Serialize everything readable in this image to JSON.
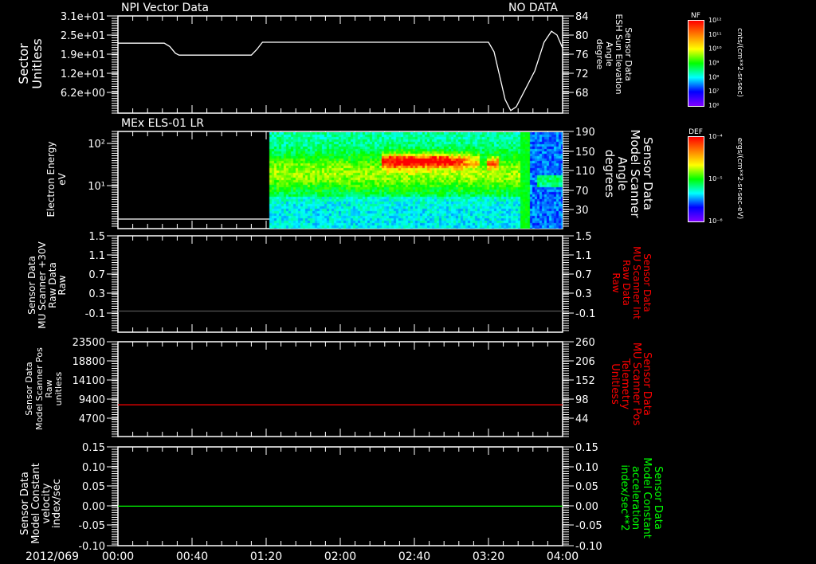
{
  "header": {
    "title": "NPI Vector Data",
    "status": "NO DATA"
  },
  "x_axis": {
    "date_label": "2012/069",
    "tick_labels": [
      "00:00",
      "00:40",
      "01:20",
      "02:00",
      "02:40",
      "03:20",
      "04:00"
    ],
    "range_minutes": [
      0,
      240
    ]
  },
  "colors": {
    "white": "#ffffff",
    "red": "#ff0000",
    "green": "#00ff00",
    "gray": "#555555"
  },
  "colorbars": [
    {
      "title": "NF",
      "ticks": [
        "10¹²",
        "10¹¹",
        "10¹⁰",
        "10⁹",
        "10⁸",
        "10⁷",
        "10⁶"
      ],
      "units": "cnts/(cm**2-sr-sec)"
    },
    {
      "title": "DEF",
      "ticks": [
        "10⁻⁴",
        "10⁻⁵",
        "10⁻⁶"
      ],
      "units": "ergs/(cm**2-sr-sec-eV)"
    }
  ],
  "chart_data": [
    {
      "type": "line",
      "title": "NPI Vector Data",
      "ylabel_left": [
        "Sector",
        "Unitless"
      ],
      "left_ticks": [
        "3.1e+01",
        "2.5e+01",
        "1.9e+01",
        "1.2e+01",
        "6.2e+00"
      ],
      "ylabel_right": [
        "Sensor Data",
        "ESH Sun Elevation",
        "Angle",
        "degree"
      ],
      "right_ticks": [
        "84",
        "80",
        "76",
        "72",
        "68"
      ],
      "ylim_right": [
        63.7,
        84
      ],
      "series": [
        {
          "name": "ESH Sun Elevation Angle",
          "color": "#ffffff",
          "x": [
            0,
            25,
            28,
            31,
            33,
            72,
            75,
            78,
            200,
            203,
            206,
            209,
            212,
            215,
            225,
            230,
            234,
            237,
            240
          ],
          "y": [
            78.3,
            78.3,
            77.6,
            76.2,
            75.8,
            75.8,
            77.0,
            78.5,
            78.5,
            76.5,
            71.5,
            66.5,
            64.2,
            65.0,
            72.5,
            78.5,
            80.8,
            80.0,
            77.3
          ]
        }
      ]
    },
    {
      "type": "heatmap",
      "title": "MEx ELS-01 LR",
      "ylabel_left": [
        "Electron Energy",
        "eV"
      ],
      "left_ticks": [
        "10²",
        "10¹"
      ],
      "ylim_log10": [
        0,
        2.3
      ],
      "ylabel_right": [
        "Sensor Data",
        "Model Scanner",
        "Angle",
        "degrees"
      ],
      "right_ticks": [
        "190",
        "150",
        "110",
        "70",
        "30"
      ],
      "data_start_minute": 81,
      "intense_band": {
        "start_minute": 141,
        "end_minute": 194,
        "log10_energy_center": 1.65
      },
      "quiet_after_minute": 222,
      "baseline_series": {
        "color": "#ffffff",
        "log10_energy": 0.22
      }
    },
    {
      "type": "line",
      "ylabel_left": [
        "Sensor Data",
        "MU Scanner +30V",
        "Raw Data",
        "Raw"
      ],
      "left_ticks": [
        "1.5",
        "1.1",
        "0.7",
        "0.3",
        "-0.1"
      ],
      "ylabel_right": [
        "Sensor Data",
        "MU Scanner Int",
        "Raw Data",
        "Raw"
      ],
      "right_ticks": [
        "1.5",
        "1.1",
        "0.7",
        "0.3",
        "-0.1"
      ],
      "ylim": [
        -0.42,
        1.5
      ],
      "series": [
        {
          "name": "MU Scanner +30V",
          "color": "#555555",
          "x": [
            0,
            240
          ],
          "y": [
            0.0,
            0.0
          ]
        }
      ]
    },
    {
      "type": "line",
      "ylabel_left": [
        "Sensor Data",
        "Model Scanner Pos",
        "Raw",
        "unitless"
      ],
      "left_ticks": [
        "23500",
        "18800",
        "14100",
        "9400",
        "4700"
      ],
      "ylabel_right": [
        "Sensor Data",
        "MU Scanner Pos",
        "Telemetry",
        "Unitless"
      ],
      "right_ticks": [
        "260",
        "206",
        "152",
        "98",
        "44"
      ],
      "ylim": [
        0,
        23500
      ],
      "series": [
        {
          "name": "Model Scanner Pos",
          "color": "#ff0000",
          "x": [
            0,
            240
          ],
          "y": [
            8000,
            8000
          ]
        }
      ]
    },
    {
      "type": "line",
      "ylabel_left": [
        "Sensor Data",
        "Model Constant",
        "velocity",
        "index/sec"
      ],
      "left_ticks": [
        "0.15",
        "0.10",
        "0.05",
        "0.00",
        "-0.05",
        "-0.10"
      ],
      "ylabel_right": [
        "Sensor Data",
        "Model Constant",
        "acceleration",
        "index/sec**2"
      ],
      "right_ticks": [
        "0.15",
        "0.10",
        "0.05",
        "0.00",
        "-0.05",
        "-0.10"
      ],
      "ylim": [
        -0.1,
        0.15
      ],
      "series": [
        {
          "name": "Model Constant velocity",
          "color": "#00ff00",
          "x": [
            0,
            240
          ],
          "y": [
            0,
            0
          ]
        }
      ]
    }
  ]
}
